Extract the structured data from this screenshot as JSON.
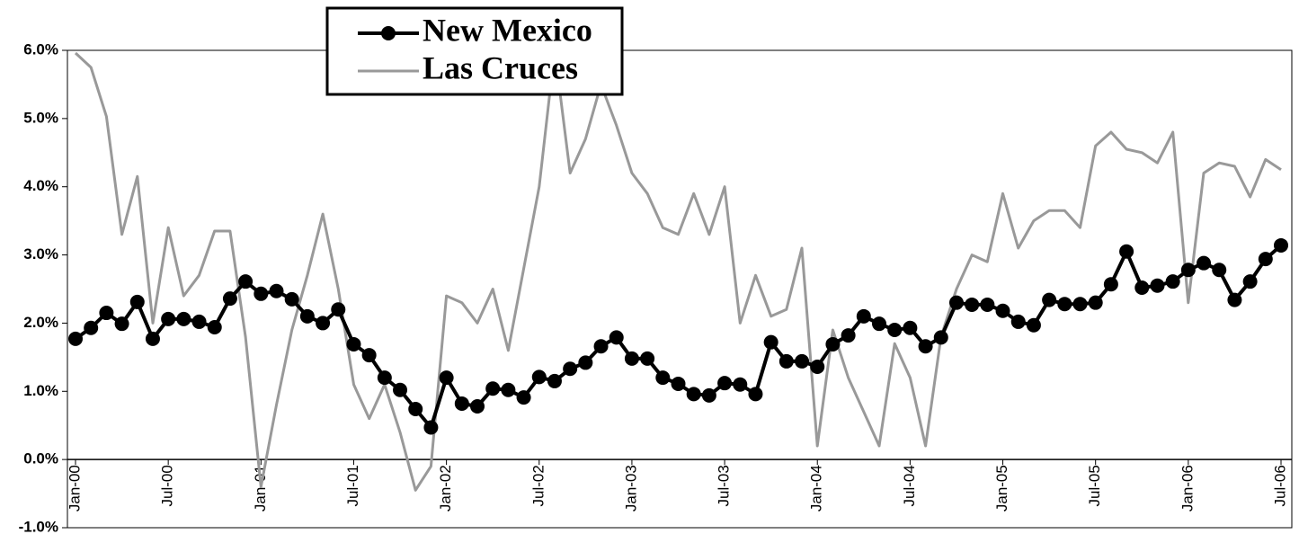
{
  "chart_data": {
    "type": "line",
    "categories": [
      "Jan-00",
      null,
      null,
      null,
      null,
      null,
      "Jul-00",
      null,
      null,
      null,
      null,
      null,
      "Jan-01",
      null,
      null,
      null,
      null,
      null,
      "Jul-01",
      null,
      null,
      null,
      null,
      null,
      "Jan-02",
      null,
      null,
      null,
      null,
      null,
      "Jul-02",
      null,
      null,
      null,
      null,
      null,
      "Jan-03",
      null,
      null,
      null,
      null,
      null,
      "Jul-03",
      null,
      null,
      null,
      null,
      null,
      "Jan-04",
      null,
      null,
      null,
      null,
      null,
      "Jul-04",
      null,
      null,
      null,
      null,
      null,
      "Jan-05",
      null,
      null,
      null,
      null,
      null,
      "Jul-05",
      null,
      null,
      null,
      null,
      null,
      "Jan-06",
      null,
      null,
      null,
      null,
      null,
      "Jul-06"
    ],
    "series": [
      {
        "name": "New Mexico",
        "color": "#000000",
        "marker": "circle",
        "values": [
          1.77,
          1.93,
          2.15,
          1.99,
          2.31,
          1.77,
          2.06,
          2.06,
          2.02,
          1.94,
          2.36,
          2.61,
          2.43,
          2.47,
          2.35,
          2.1,
          2.0,
          2.2,
          1.69,
          1.53,
          1.2,
          1.02,
          0.74,
          0.47,
          1.2,
          0.82,
          0.78,
          1.04,
          1.02,
          0.91,
          1.21,
          1.15,
          1.33,
          1.42,
          1.66,
          1.79,
          1.48,
          1.48,
          1.2,
          1.11,
          0.96,
          0.94,
          1.12,
          1.1,
          0.96,
          1.72,
          1.44,
          1.44,
          1.36,
          1.69,
          1.82,
          2.1,
          1.99,
          1.9,
          1.93,
          1.66,
          1.79,
          2.3,
          2.27,
          2.27,
          2.18,
          2.02,
          1.97,
          2.34,
          2.28,
          2.28,
          2.3,
          2.57,
          3.05,
          2.52,
          2.55,
          2.61,
          2.78,
          2.88,
          2.78,
          2.34,
          2.61,
          2.94,
          3.14
        ]
      },
      {
        "name": "Las Cruces",
        "color": "#999999",
        "values": [
          5.96,
          5.75,
          5.03,
          3.3,
          4.15,
          2.0,
          3.4,
          2.4,
          2.7,
          3.35,
          3.35,
          1.8,
          -0.4,
          0.8,
          1.9,
          2.7,
          3.6,
          2.5,
          1.1,
          0.6,
          1.1,
          0.4,
          -0.45,
          -0.1,
          2.4,
          2.3,
          2.0,
          2.5,
          1.6,
          2.8,
          4.0,
          6.0,
          4.2,
          4.7,
          5.5,
          4.9,
          4.2,
          3.9,
          3.4,
          3.3,
          3.9,
          3.3,
          4.0,
          2.0,
          2.7,
          2.1,
          2.2,
          3.1,
          0.2,
          1.9,
          1.2,
          0.7,
          0.2,
          1.7,
          1.2,
          0.2,
          1.8,
          2.5,
          3.0,
          2.9,
          3.9,
          3.1,
          3.5,
          3.65,
          3.65,
          3.4,
          4.6,
          4.8,
          4.55,
          4.5,
          4.35,
          4.8,
          2.3,
          4.2,
          4.35,
          4.3,
          3.85,
          4.4,
          4.25
        ]
      }
    ],
    "ylim": [
      -1,
      6
    ],
    "yticks": [
      {
        "value": -1,
        "label": "-1.0%"
      },
      {
        "value": 0,
        "label": "0.0%"
      },
      {
        "value": 1,
        "label": "1.0%"
      },
      {
        "value": 2,
        "label": "2.0%"
      },
      {
        "value": 3,
        "label": "3.0%"
      },
      {
        "value": 4,
        "label": "4.0%"
      },
      {
        "value": 5,
        "label": "5.0%"
      },
      {
        "value": 6,
        "label": "6.0%"
      }
    ],
    "legend": "top-left"
  }
}
